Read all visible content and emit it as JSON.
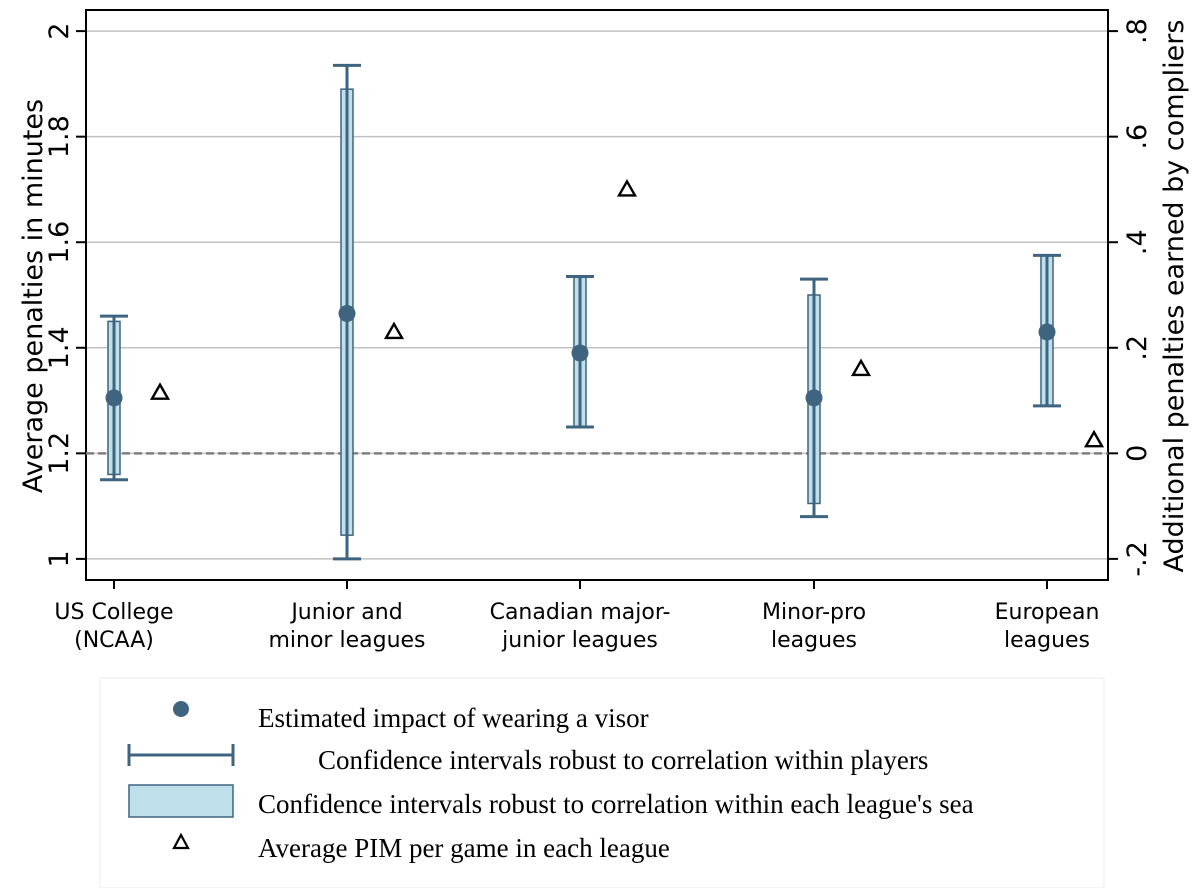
{
  "chart_data": {
    "type": "scatter",
    "categories": [
      [
        "US College",
        "(NCAA)"
      ],
      [
        "Junior and",
        "minor leagues"
      ],
      [
        "Canadian major-",
        "junior leagues"
      ],
      [
        "Minor-pro",
        "leagues"
      ],
      [
        "European",
        "leagues"
      ]
    ],
    "left_axis": {
      "label": "Average penalties in minutes",
      "lim": [
        0.96,
        2.04
      ],
      "ticks": [
        1,
        1.2,
        1.4,
        1.6,
        1.8,
        2
      ],
      "tick_labels": [
        "1",
        "1.2",
        "1.4",
        "1.6",
        "1.8",
        "2"
      ]
    },
    "right_axis": {
      "label": "Additional penalties earned by compliers",
      "lim": [
        -0.24,
        0.84
      ],
      "ticks": [
        -0.2,
        0,
        0.2,
        0.4,
        0.6,
        0.8
      ],
      "tick_labels": [
        "-.2",
        "0",
        ".2",
        ".4",
        ".6",
        ".8"
      ],
      "reference_line": 0
    },
    "estimates": [
      0.105,
      0.265,
      0.19,
      0.105,
      0.23
    ],
    "ci_players": [
      [
        -0.05,
        0.26
      ],
      [
        -0.2,
        0.735
      ],
      [
        0.05,
        0.335
      ],
      [
        -0.12,
        0.33
      ],
      [
        0.09,
        0.375
      ]
    ],
    "ci_league_season": [
      [
        -0.04,
        0.25
      ],
      [
        -0.155,
        0.69
      ],
      [
        0.05,
        0.335
      ],
      [
        -0.095,
        0.3
      ],
      [
        0.09,
        0.375
      ]
    ],
    "avg_pim": [
      1.315,
      1.43,
      1.7,
      1.36,
      1.225
    ],
    "grid": true,
    "legend": {
      "placement": "bottom",
      "entries": [
        "Estimated impact of wearing a visor",
        "Confidence intervals robust to correlation within players",
        "Confidence intervals robust to correlation within each league's sea",
        "Average PIM per game in each league"
      ]
    },
    "colors": {
      "marker": "#3f6480",
      "whisker": "#3f6480",
      "box_fill": "#bfe0ea",
      "grid": "#c0c0c0",
      "reference": "#808080"
    }
  }
}
